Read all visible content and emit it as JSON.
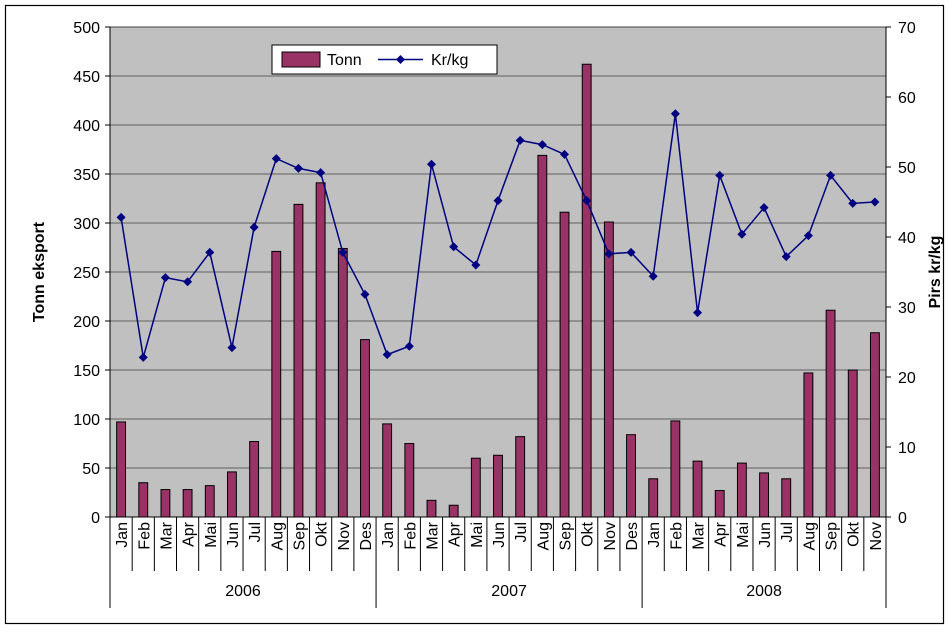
{
  "chart_data": {
    "type": "bar+line",
    "categories": [
      "Jan",
      "Feb",
      "Mar",
      "Apr",
      "Mai",
      "Jun",
      "Jul",
      "Aug",
      "Sep",
      "Okt",
      "Nov",
      "Des",
      "Jan",
      "Feb",
      "Mar",
      "Apr",
      "Mai",
      "Jun",
      "Jul",
      "Aug",
      "Sep",
      "Okt",
      "Nov",
      "Des",
      "Jan",
      "Feb",
      "Mar",
      "Apr",
      "Mai",
      "Jun",
      "Jul",
      "Aug",
      "Sep",
      "Okt",
      "Nov"
    ],
    "groups": [
      {
        "label": "2006",
        "count": 12
      },
      {
        "label": "2007",
        "count": 12
      },
      {
        "label": "2008",
        "count": 11
      }
    ],
    "series": [
      {
        "name": "Tonn",
        "type": "bar",
        "axis": "left",
        "color": "#993366",
        "values": [
          97,
          35,
          28,
          28,
          32,
          46,
          77,
          271,
          319,
          341,
          274,
          181,
          95,
          75,
          17,
          12,
          60,
          63,
          82,
          369,
          311,
          462,
          301,
          84,
          39,
          98,
          57,
          27,
          55,
          45,
          39,
          147,
          211,
          150,
          188
        ]
      },
      {
        "name": "Kr/kg",
        "type": "line",
        "axis": "right",
        "color": "#000080",
        "values": [
          42.8,
          22.8,
          34.2,
          33.6,
          37.8,
          24.2,
          41.4,
          51.2,
          49.8,
          49.2,
          37.8,
          31.8,
          23.2,
          24.4,
          50.4,
          38.6,
          36.0,
          45.2,
          53.8,
          53.2,
          51.8,
          45.2,
          37.6,
          37.8,
          34.4,
          57.6,
          29.2,
          48.8,
          40.4,
          44.2,
          37.2,
          40.2,
          48.8,
          44.8,
          45.0
        ]
      }
    ],
    "ylabel": "Tonn eksport",
    "y2label": "Pirs kr/kg",
    "ylim": [
      0,
      500
    ],
    "y2lim": [
      0,
      70
    ],
    "yticks": [
      "0",
      "50",
      "100",
      "150",
      "200",
      "250",
      "300",
      "350",
      "400",
      "450",
      "500"
    ],
    "y2ticks": [
      "0",
      "10",
      "20",
      "30",
      "40",
      "50",
      "60",
      "70"
    ],
    "legend_position": "top-center",
    "plot_background": "#c0c0c0"
  }
}
